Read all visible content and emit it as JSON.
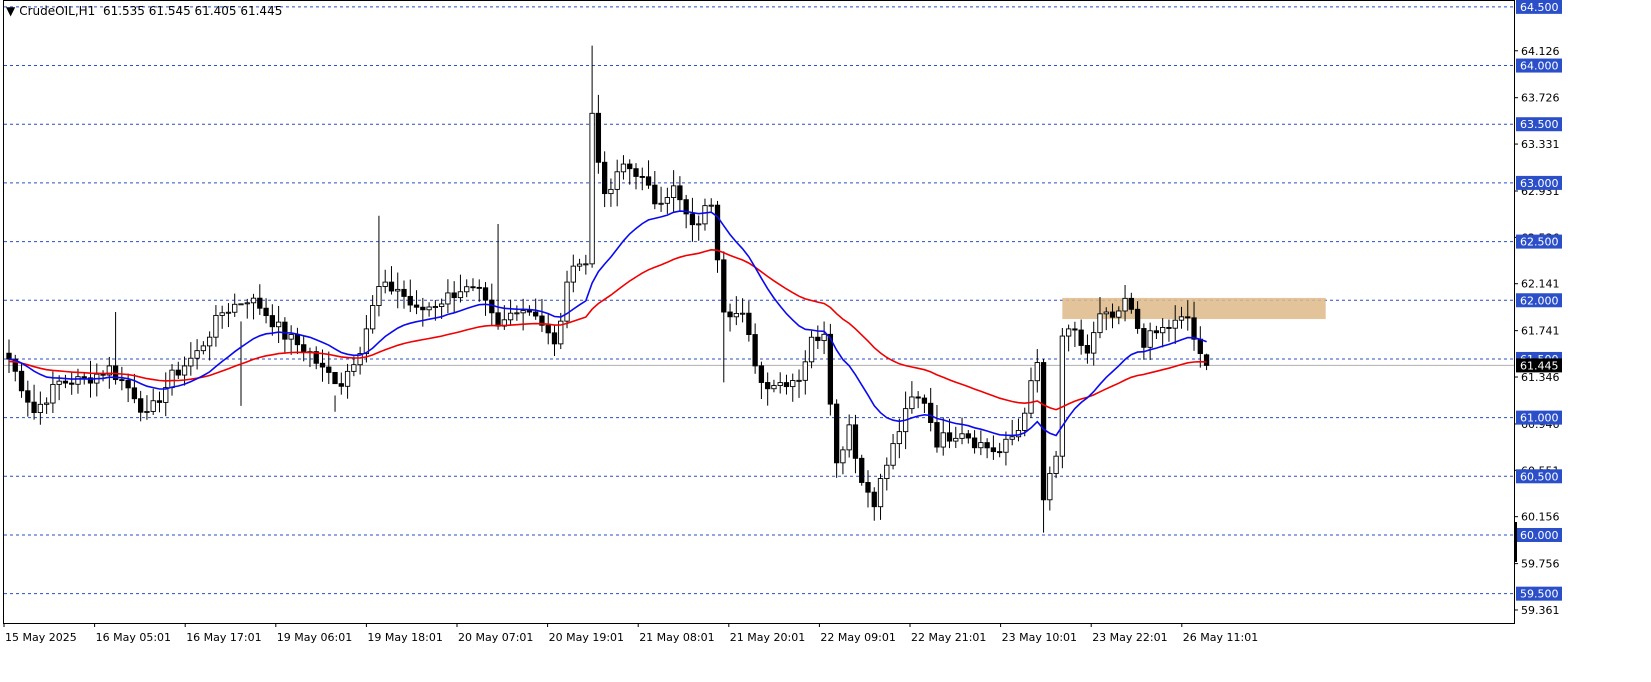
{
  "window": {
    "symbol_line": "CrudeOIL,H1",
    "ohlc_line": "61.535 61.545 61.405 61.445"
  },
  "colors": {
    "background": "#ffffff",
    "frame": "#000000",
    "grid_dashed": "#2a4fc8",
    "candle": "#000000",
    "ma_fast": "#0a0af0",
    "ma_slow": "#f00000",
    "zone": "#deb887",
    "level_label_bg": "#2a4fc8",
    "level_label_fg": "#ffffff"
  },
  "chart_data": {
    "type": "candlestick",
    "title": "CrudeOIL,H1",
    "ylim": [
      59.25,
      64.55
    ],
    "price_ticks": [
      "64.126",
      "63.726",
      "63.331",
      "62.931",
      "62.536",
      "62.141",
      "61.741",
      "61.346",
      "60.946",
      "60.551",
      "60.156",
      "59.756",
      "59.361"
    ],
    "level_lines": [
      "64.500",
      "64.000",
      "63.500",
      "63.000",
      "62.500",
      "62.000",
      "61.500",
      "61.000",
      "60.500",
      "60.000",
      "59.500"
    ],
    "current_price": "61.445",
    "time_labels": [
      "15 May 2025",
      "16 May 05:01",
      "16 May 17:01",
      "19 May 06:01",
      "19 May 18:01",
      "20 May 07:01",
      "20 May 19:01",
      "21 May 08:01",
      "21 May 20:01",
      "22 May 09:01",
      "22 May 21:01",
      "23 May 10:01",
      "23 May 22:01",
      "26 May 11:01"
    ],
    "resistance_zone": {
      "low": 61.84,
      "high": 62.02,
      "from_bar": 168,
      "to_bar": 210
    },
    "moving_averages": [
      {
        "color": "blue",
        "length": 20
      },
      {
        "color": "red",
        "length": 50
      }
    ],
    "price_anchors": [
      [
        0,
        61.5
      ],
      [
        4,
        61.05
      ],
      [
        8,
        61.3
      ],
      [
        12,
        61.32
      ],
      [
        16,
        61.42
      ],
      [
        20,
        61.2
      ],
      [
        22,
        61.0
      ],
      [
        26,
        61.35
      ],
      [
        30,
        61.55
      ],
      [
        34,
        61.9
      ],
      [
        38,
        62.02
      ],
      [
        40,
        61.95
      ],
      [
        44,
        61.7
      ],
      [
        48,
        61.55
      ],
      [
        50,
        61.4
      ],
      [
        53,
        61.3
      ],
      [
        56,
        61.6
      ],
      [
        59,
        62.1
      ],
      [
        62,
        62.1
      ],
      [
        65,
        61.9
      ],
      [
        69,
        62.0
      ],
      [
        72,
        62.1
      ],
      [
        75,
        62.05
      ],
      [
        78,
        61.75
      ],
      [
        81,
        61.95
      ],
      [
        84,
        61.9
      ],
      [
        87,
        61.6
      ],
      [
        90,
        62.35
      ],
      [
        92,
        62.3
      ],
      [
        93,
        63.6
      ],
      [
        95,
        62.85
      ],
      [
        98,
        63.15
      ],
      [
        100,
        63.1
      ],
      [
        103,
        62.85
      ],
      [
        106,
        62.95
      ],
      [
        109,
        62.6
      ],
      [
        112,
        62.85
      ],
      [
        114,
        61.95
      ],
      [
        117,
        61.85
      ],
      [
        120,
        61.3
      ],
      [
        123,
        61.3
      ],
      [
        126,
        61.35
      ],
      [
        128,
        61.65
      ],
      [
        130,
        61.75
      ],
      [
        132,
        60.6
      ],
      [
        134,
        60.95
      ],
      [
        136,
        60.45
      ],
      [
        138,
        60.3
      ],
      [
        140,
        60.6
      ],
      [
        142,
        60.9
      ],
      [
        144,
        61.15
      ],
      [
        146,
        61.15
      ],
      [
        148,
        60.8
      ],
      [
        150,
        60.85
      ],
      [
        152,
        60.9
      ],
      [
        154,
        60.8
      ],
      [
        156,
        60.75
      ],
      [
        158,
        60.7
      ],
      [
        161,
        60.9
      ],
      [
        164,
        61.45
      ],
      [
        165,
        60.3
      ],
      [
        167,
        60.65
      ],
      [
        168,
        61.7
      ],
      [
        170,
        61.7
      ],
      [
        172,
        61.55
      ],
      [
        174,
        61.85
      ],
      [
        177,
        61.85
      ],
      [
        178,
        62.0
      ],
      [
        181,
        61.65
      ],
      [
        184,
        61.75
      ],
      [
        188,
        61.85
      ],
      [
        190,
        61.5
      ],
      [
        191,
        61.445
      ]
    ],
    "bar_count": 192
  }
}
